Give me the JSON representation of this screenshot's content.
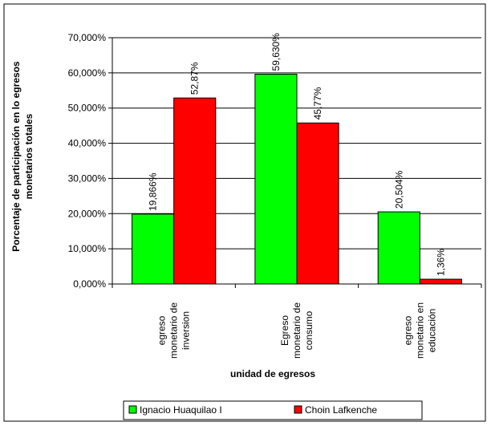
{
  "chart_data": {
    "type": "bar",
    "categories": [
      [
        "egreso",
        "monetario de",
        "inversion"
      ],
      [
        "Egreso",
        "monetario de",
        "consumo"
      ],
      [
        "egreso",
        "monetario en",
        "educación"
      ]
    ],
    "series": [
      {
        "name": "Ignacio Huaquilao I",
        "color": "#00FF00",
        "values": [
          19.866,
          59.63,
          20.504
        ],
        "labels": [
          "19,866%",
          "59,630%",
          "20,504%"
        ]
      },
      {
        "name": "Choin Lafkenche",
        "color": "#FF0000",
        "values": [
          52.87,
          45.77,
          1.36
        ],
        "labels": [
          "52,87%",
          "45,77%",
          "1,36%"
        ]
      }
    ],
    "title": "",
    "xlabel": "unidad de egresos",
    "ylabel": [
      "Porcentaje  de participación en lo egresos",
      "monetarios totales"
    ],
    "ylim": [
      0,
      70
    ],
    "yticks": [
      "0,000%",
      "10,000%",
      "20,000%",
      "30,000%",
      "40,000%",
      "50,000%",
      "60,000%",
      "70,000%"
    ],
    "grid": "horizontal",
    "legend_position": "bottom"
  }
}
